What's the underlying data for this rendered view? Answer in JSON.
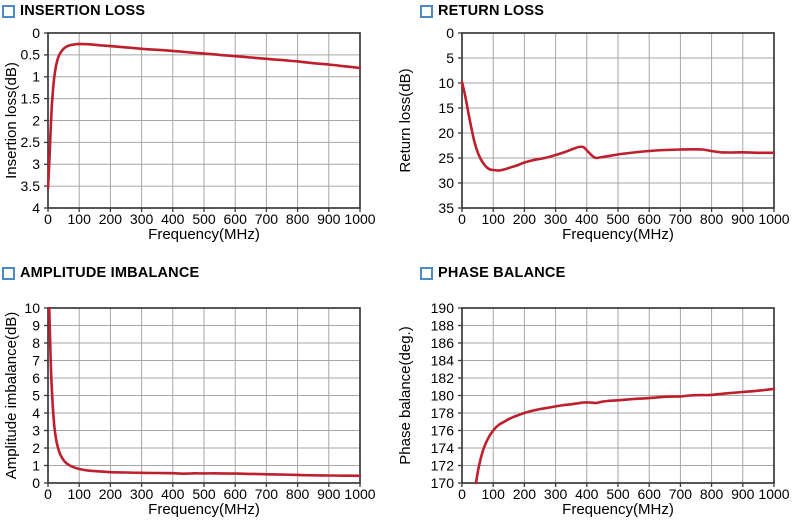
{
  "colors": {
    "curve": "#be1f2d",
    "grid": "#a6a6a6",
    "frame": "#3a3a3a",
    "bullet": "#4b8bc5",
    "text": "#000000",
    "background": "#ffffff"
  },
  "chart_data": [
    {
      "type": "line",
      "title": "INSERTION LOSS",
      "xlabel": "Frequency(MHz)",
      "ylabel": "Insertion loss(dB)",
      "x_range": [
        0,
        1000
      ],
      "x_ticks": [
        0,
        100,
        200,
        300,
        400,
        500,
        600,
        700,
        800,
        900,
        1000
      ],
      "y_top": 0,
      "y_bottom": 4,
      "y_ticks": [
        0,
        0.5,
        1,
        1.5,
        2,
        2.5,
        3,
        3.5,
        4
      ],
      "grid": true,
      "legend": "none",
      "series": [
        {
          "name": "insertion-loss",
          "points": [
            [
              0,
              3.55
            ],
            [
              4,
              3.0
            ],
            [
              8,
              2.3
            ],
            [
              12,
              1.7
            ],
            [
              16,
              1.3
            ],
            [
              20,
              1.02
            ],
            [
              25,
              0.78
            ],
            [
              30,
              0.62
            ],
            [
              35,
              0.52
            ],
            [
              40,
              0.45
            ],
            [
              50,
              0.36
            ],
            [
              60,
              0.31
            ],
            [
              70,
              0.28
            ],
            [
              85,
              0.26
            ],
            [
              100,
              0.25
            ],
            [
              125,
              0.255
            ],
            [
              150,
              0.27
            ],
            [
              175,
              0.285
            ],
            [
              200,
              0.3
            ],
            [
              250,
              0.33
            ],
            [
              300,
              0.36
            ],
            [
              350,
              0.385
            ],
            [
              400,
              0.41
            ],
            [
              450,
              0.44
            ],
            [
              500,
              0.47
            ],
            [
              550,
              0.5
            ],
            [
              600,
              0.53
            ],
            [
              650,
              0.56
            ],
            [
              700,
              0.59
            ],
            [
              750,
              0.62
            ],
            [
              800,
              0.65
            ],
            [
              850,
              0.69
            ],
            [
              900,
              0.72
            ],
            [
              950,
              0.76
            ],
            [
              1000,
              0.8
            ]
          ]
        }
      ]
    },
    {
      "type": "line",
      "title": "RETURN LOSS",
      "xlabel": "Frequency(MHz)",
      "ylabel": "Return loss(dB)",
      "x_range": [
        0,
        1000
      ],
      "x_ticks": [
        0,
        100,
        200,
        300,
        400,
        500,
        600,
        700,
        800,
        900,
        1000
      ],
      "y_top": 0,
      "y_bottom": 35,
      "y_ticks": [
        0,
        5,
        10,
        15,
        20,
        25,
        30,
        35
      ],
      "grid": true,
      "legend": "none",
      "series": [
        {
          "name": "return-loss",
          "points": [
            [
              0,
              9.8
            ],
            [
              10,
              12.5
            ],
            [
              20,
              15.8
            ],
            [
              30,
              19.0
            ],
            [
              40,
              21.8
            ],
            [
              50,
              23.8
            ],
            [
              60,
              25.2
            ],
            [
              70,
              26.2
            ],
            [
              80,
              26.9
            ],
            [
              90,
              27.3
            ],
            [
              100,
              27.4
            ],
            [
              120,
              27.5
            ],
            [
              140,
              27.2
            ],
            [
              160,
              26.8
            ],
            [
              180,
              26.4
            ],
            [
              200,
              25.9
            ],
            [
              230,
              25.4
            ],
            [
              265,
              25.0
            ],
            [
              300,
              24.4
            ],
            [
              330,
              23.8
            ],
            [
              355,
              23.2
            ],
            [
              375,
              22.8
            ],
            [
              390,
              22.85
            ],
            [
              405,
              23.8
            ],
            [
              420,
              24.7
            ],
            [
              430,
              25.0
            ],
            [
              450,
              24.8
            ],
            [
              480,
              24.5
            ],
            [
              510,
              24.2
            ],
            [
              550,
              23.9
            ],
            [
              600,
              23.6
            ],
            [
              650,
              23.4
            ],
            [
              700,
              23.3
            ],
            [
              740,
              23.25
            ],
            [
              770,
              23.3
            ],
            [
              800,
              23.6
            ],
            [
              830,
              23.85
            ],
            [
              860,
              23.9
            ],
            [
              900,
              23.85
            ],
            [
              950,
              23.95
            ],
            [
              1000,
              23.95
            ]
          ]
        }
      ]
    },
    {
      "type": "line",
      "title": "AMPLITUDE IMBALANCE",
      "xlabel": "Frequency(MHz)",
      "ylabel": "Amplitude imbalance(dB)",
      "x_range": [
        0,
        1000
      ],
      "x_ticks": [
        0,
        100,
        200,
        300,
        400,
        500,
        600,
        700,
        800,
        900,
        1000
      ],
      "y_top": 10,
      "y_bottom": 0,
      "y_ticks": [
        10,
        9,
        8,
        7,
        6,
        5,
        4,
        3,
        2,
        1,
        0
      ],
      "grid": true,
      "legend": "none",
      "series": [
        {
          "name": "amplitude-imbalance",
          "points": [
            [
              4,
              10
            ],
            [
              6,
              8.6
            ],
            [
              8,
              7.4
            ],
            [
              10,
              6.3
            ],
            [
              13,
              5.1
            ],
            [
              16,
              4.2
            ],
            [
              20,
              3.3
            ],
            [
              25,
              2.6
            ],
            [
              30,
              2.15
            ],
            [
              35,
              1.85
            ],
            [
              40,
              1.6
            ],
            [
              50,
              1.3
            ],
            [
              60,
              1.12
            ],
            [
              70,
              1.0
            ],
            [
              85,
              0.88
            ],
            [
              100,
              0.8
            ],
            [
              125,
              0.72
            ],
            [
              150,
              0.68
            ],
            [
              200,
              0.62
            ],
            [
              250,
              0.6
            ],
            [
              300,
              0.58
            ],
            [
              350,
              0.57
            ],
            [
              400,
              0.56
            ],
            [
              430,
              0.53
            ],
            [
              460,
              0.55
            ],
            [
              500,
              0.55
            ],
            [
              550,
              0.55
            ],
            [
              600,
              0.54
            ],
            [
              650,
              0.52
            ],
            [
              700,
              0.5
            ],
            [
              750,
              0.48
            ],
            [
              800,
              0.46
            ],
            [
              850,
              0.44
            ],
            [
              900,
              0.43
            ],
            [
              950,
              0.42
            ],
            [
              1000,
              0.41
            ]
          ]
        }
      ]
    },
    {
      "type": "line",
      "title": "PHASE BALANCE",
      "xlabel": "Frequency(MHz)",
      "ylabel": "Phase balance(deg.)",
      "x_range": [
        0,
        1000
      ],
      "x_ticks": [
        0,
        100,
        200,
        300,
        400,
        500,
        600,
        700,
        800,
        900,
        1000
      ],
      "y_top": 190,
      "y_bottom": 170,
      "y_ticks": [
        190,
        188,
        186,
        184,
        182,
        180,
        178,
        176,
        174,
        172,
        170
      ],
      "grid": true,
      "legend": "none",
      "series": [
        {
          "name": "phase-balance",
          "points": [
            [
              45,
              170
            ],
            [
              48,
              170.7
            ],
            [
              52,
              171.5
            ],
            [
              56,
              172.2
            ],
            [
              60,
              172.8
            ],
            [
              65,
              173.45
            ],
            [
              70,
              174.0
            ],
            [
              75,
              174.45
            ],
            [
              80,
              174.85
            ],
            [
              90,
              175.5
            ],
            [
              100,
              176.0
            ],
            [
              110,
              176.4
            ],
            [
              120,
              176.7
            ],
            [
              135,
              177.0
            ],
            [
              150,
              177.3
            ],
            [
              165,
              177.55
            ],
            [
              180,
              177.75
            ],
            [
              200,
              178.0
            ],
            [
              225,
              178.25
            ],
            [
              250,
              178.45
            ],
            [
              275,
              178.6
            ],
            [
              300,
              178.75
            ],
            [
              325,
              178.9
            ],
            [
              350,
              179.0
            ],
            [
              370,
              179.1
            ],
            [
              390,
              179.2
            ],
            [
              410,
              179.2
            ],
            [
              430,
              179.15
            ],
            [
              450,
              179.3
            ],
            [
              475,
              179.4
            ],
            [
              500,
              179.45
            ],
            [
              550,
              179.6
            ],
            [
              600,
              179.7
            ],
            [
              650,
              179.85
            ],
            [
              700,
              179.9
            ],
            [
              730,
              180.0
            ],
            [
              760,
              180.05
            ],
            [
              790,
              180.05
            ],
            [
              820,
              180.15
            ],
            [
              850,
              180.25
            ],
            [
              900,
              180.4
            ],
            [
              950,
              180.55
            ],
            [
              1000,
              180.75
            ]
          ]
        }
      ]
    }
  ]
}
